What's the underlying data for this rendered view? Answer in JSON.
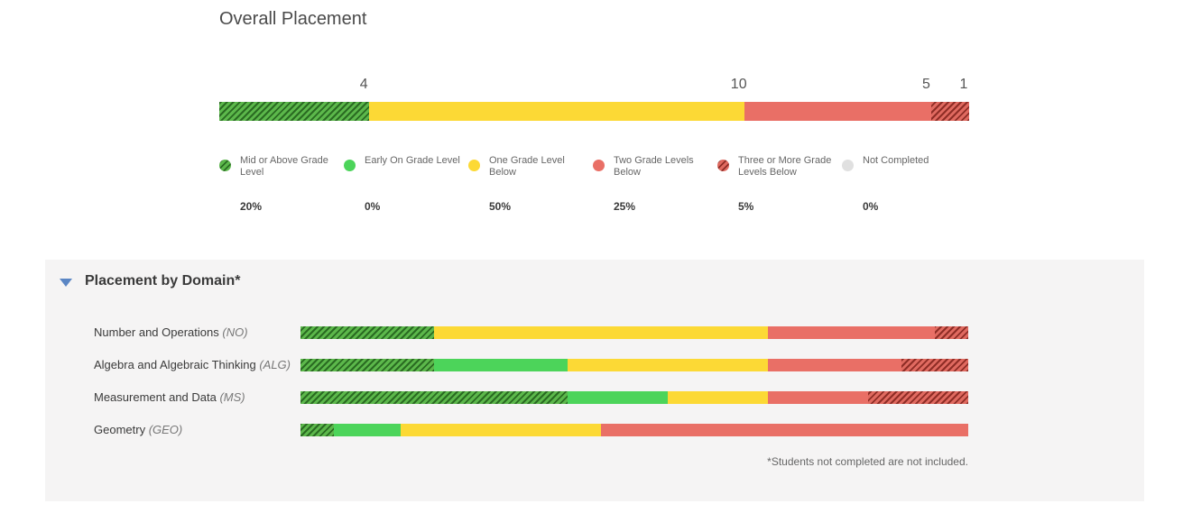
{
  "overall": {
    "title": "Overall Placement",
    "counts": [
      "4",
      "10",
      "5",
      "1"
    ]
  },
  "legend": [
    {
      "label": "Mid or Above Grade Level",
      "pct": "20%",
      "cls": "c-mid"
    },
    {
      "label": "Early On Grade Level",
      "pct": "0%",
      "cls": "c-early"
    },
    {
      "label": "One Grade Level Below",
      "pct": "50%",
      "cls": "c-one"
    },
    {
      "label": "Two Grade Levels Below",
      "pct": "25%",
      "cls": "c-two"
    },
    {
      "label": "Three or More Grade Levels Below",
      "pct": "5%",
      "cls": "c-three"
    },
    {
      "label": "Not Completed",
      "pct": "0%",
      "cls": "c-nc"
    }
  ],
  "domain_panel": {
    "title": "Placement by Domain*",
    "footnote": "*Students not completed are not included."
  },
  "colors": {
    "mid": "#3e9a35",
    "early": "#4cd45a",
    "one": "#fcd935",
    "two": "#e96f66",
    "three": "#c8463c",
    "not_completed": "#e0e0e0",
    "toggle": "#5b86c4"
  },
  "chart_data": [
    {
      "type": "bar",
      "title": "Overall Placement",
      "orientation": "horizontal-stacked",
      "categories": [
        "Overall"
      ],
      "series": [
        {
          "name": "Mid or Above Grade Level",
          "values": [
            4
          ]
        },
        {
          "name": "Early On Grade Level",
          "values": [
            0
          ]
        },
        {
          "name": "One Grade Level Below",
          "values": [
            10
          ]
        },
        {
          "name": "Two Grade Levels Below",
          "values": [
            5
          ]
        },
        {
          "name": "Three or More Grade Levels Below",
          "values": [
            1
          ]
        },
        {
          "name": "Not Completed",
          "values": [
            0
          ]
        }
      ]
    },
    {
      "type": "bar",
      "title": "Placement by Domain*",
      "orientation": "horizontal-stacked",
      "categories": [
        {
          "name": "Number and Operations",
          "abbr": "(NO)"
        },
        {
          "name": "Algebra and Algebraic Thinking",
          "abbr": "(ALG)"
        },
        {
          "name": "Measurement and Data",
          "abbr": "(MS)"
        },
        {
          "name": "Geometry",
          "abbr": "(GEO)"
        }
      ],
      "series": [
        {
          "name": "Mid or Above Grade Level",
          "values": [
            4,
            4,
            8,
            1
          ]
        },
        {
          "name": "Early On Grade Level",
          "values": [
            0,
            4,
            3,
            2
          ]
        },
        {
          "name": "One Grade Level Below",
          "values": [
            10,
            6,
            3,
            6
          ]
        },
        {
          "name": "Two Grade Levels Below",
          "values": [
            5,
            4,
            3,
            11
          ]
        },
        {
          "name": "Three or More Grade Levels Below",
          "values": [
            1,
            2,
            3,
            0
          ]
        }
      ]
    }
  ]
}
